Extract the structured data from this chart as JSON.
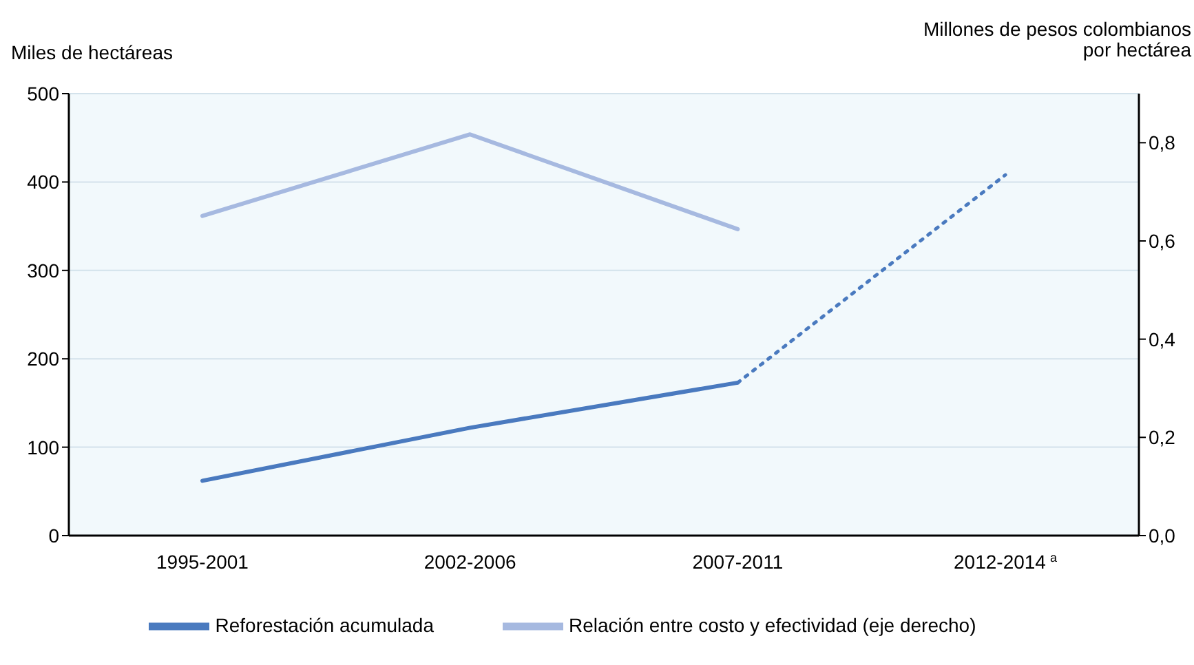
{
  "chart_data": {
    "type": "line",
    "ylabel": "Miles de hectáreas",
    "y2label": "Millones de pesos colombianos por hectárea",
    "categories": [
      "1995-2001",
      "2002-2006",
      "2007-2011",
      "2012-2014$^{a}$"
    ],
    "series": [
      {
        "name": "Reforestación acumulada",
        "color": "#4a7abf",
        "values": [
          62,
          122,
          173,
          null
        ]
      },
      {
        "color": "#4a7abf",
        "values": [
          null,
          null,
          173,
          408
        ],
        "line_style": "dotted"
      },
      {
        "name": "Relación entre costo y efectividad (eje derecho)",
        "color": "#a6b9e0",
        "values": [
          0.651,
          0.817,
          0.624,
          null
        ],
        "axis": "y2"
      }
    ],
    "ylim": [
      0,
      500
    ],
    "yticks": [
      0,
      100,
      200,
      300,
      400,
      500
    ],
    "y2lim": [
      0,
      0.9
    ],
    "y2ticks": [
      {
        "value": 0,
        "label": "0,0"
      },
      {
        "value": 0.2,
        "label": "0,2"
      },
      {
        "value": 0.4,
        "label": "0,4"
      },
      {
        "value": 0.6,
        "label": "0,6"
      },
      {
        "value": 0.8,
        "label": "0,8"
      }
    ],
    "grid": "y",
    "legend": "bottom",
    "marker": "none",
    "line_style": "solid"
  }
}
